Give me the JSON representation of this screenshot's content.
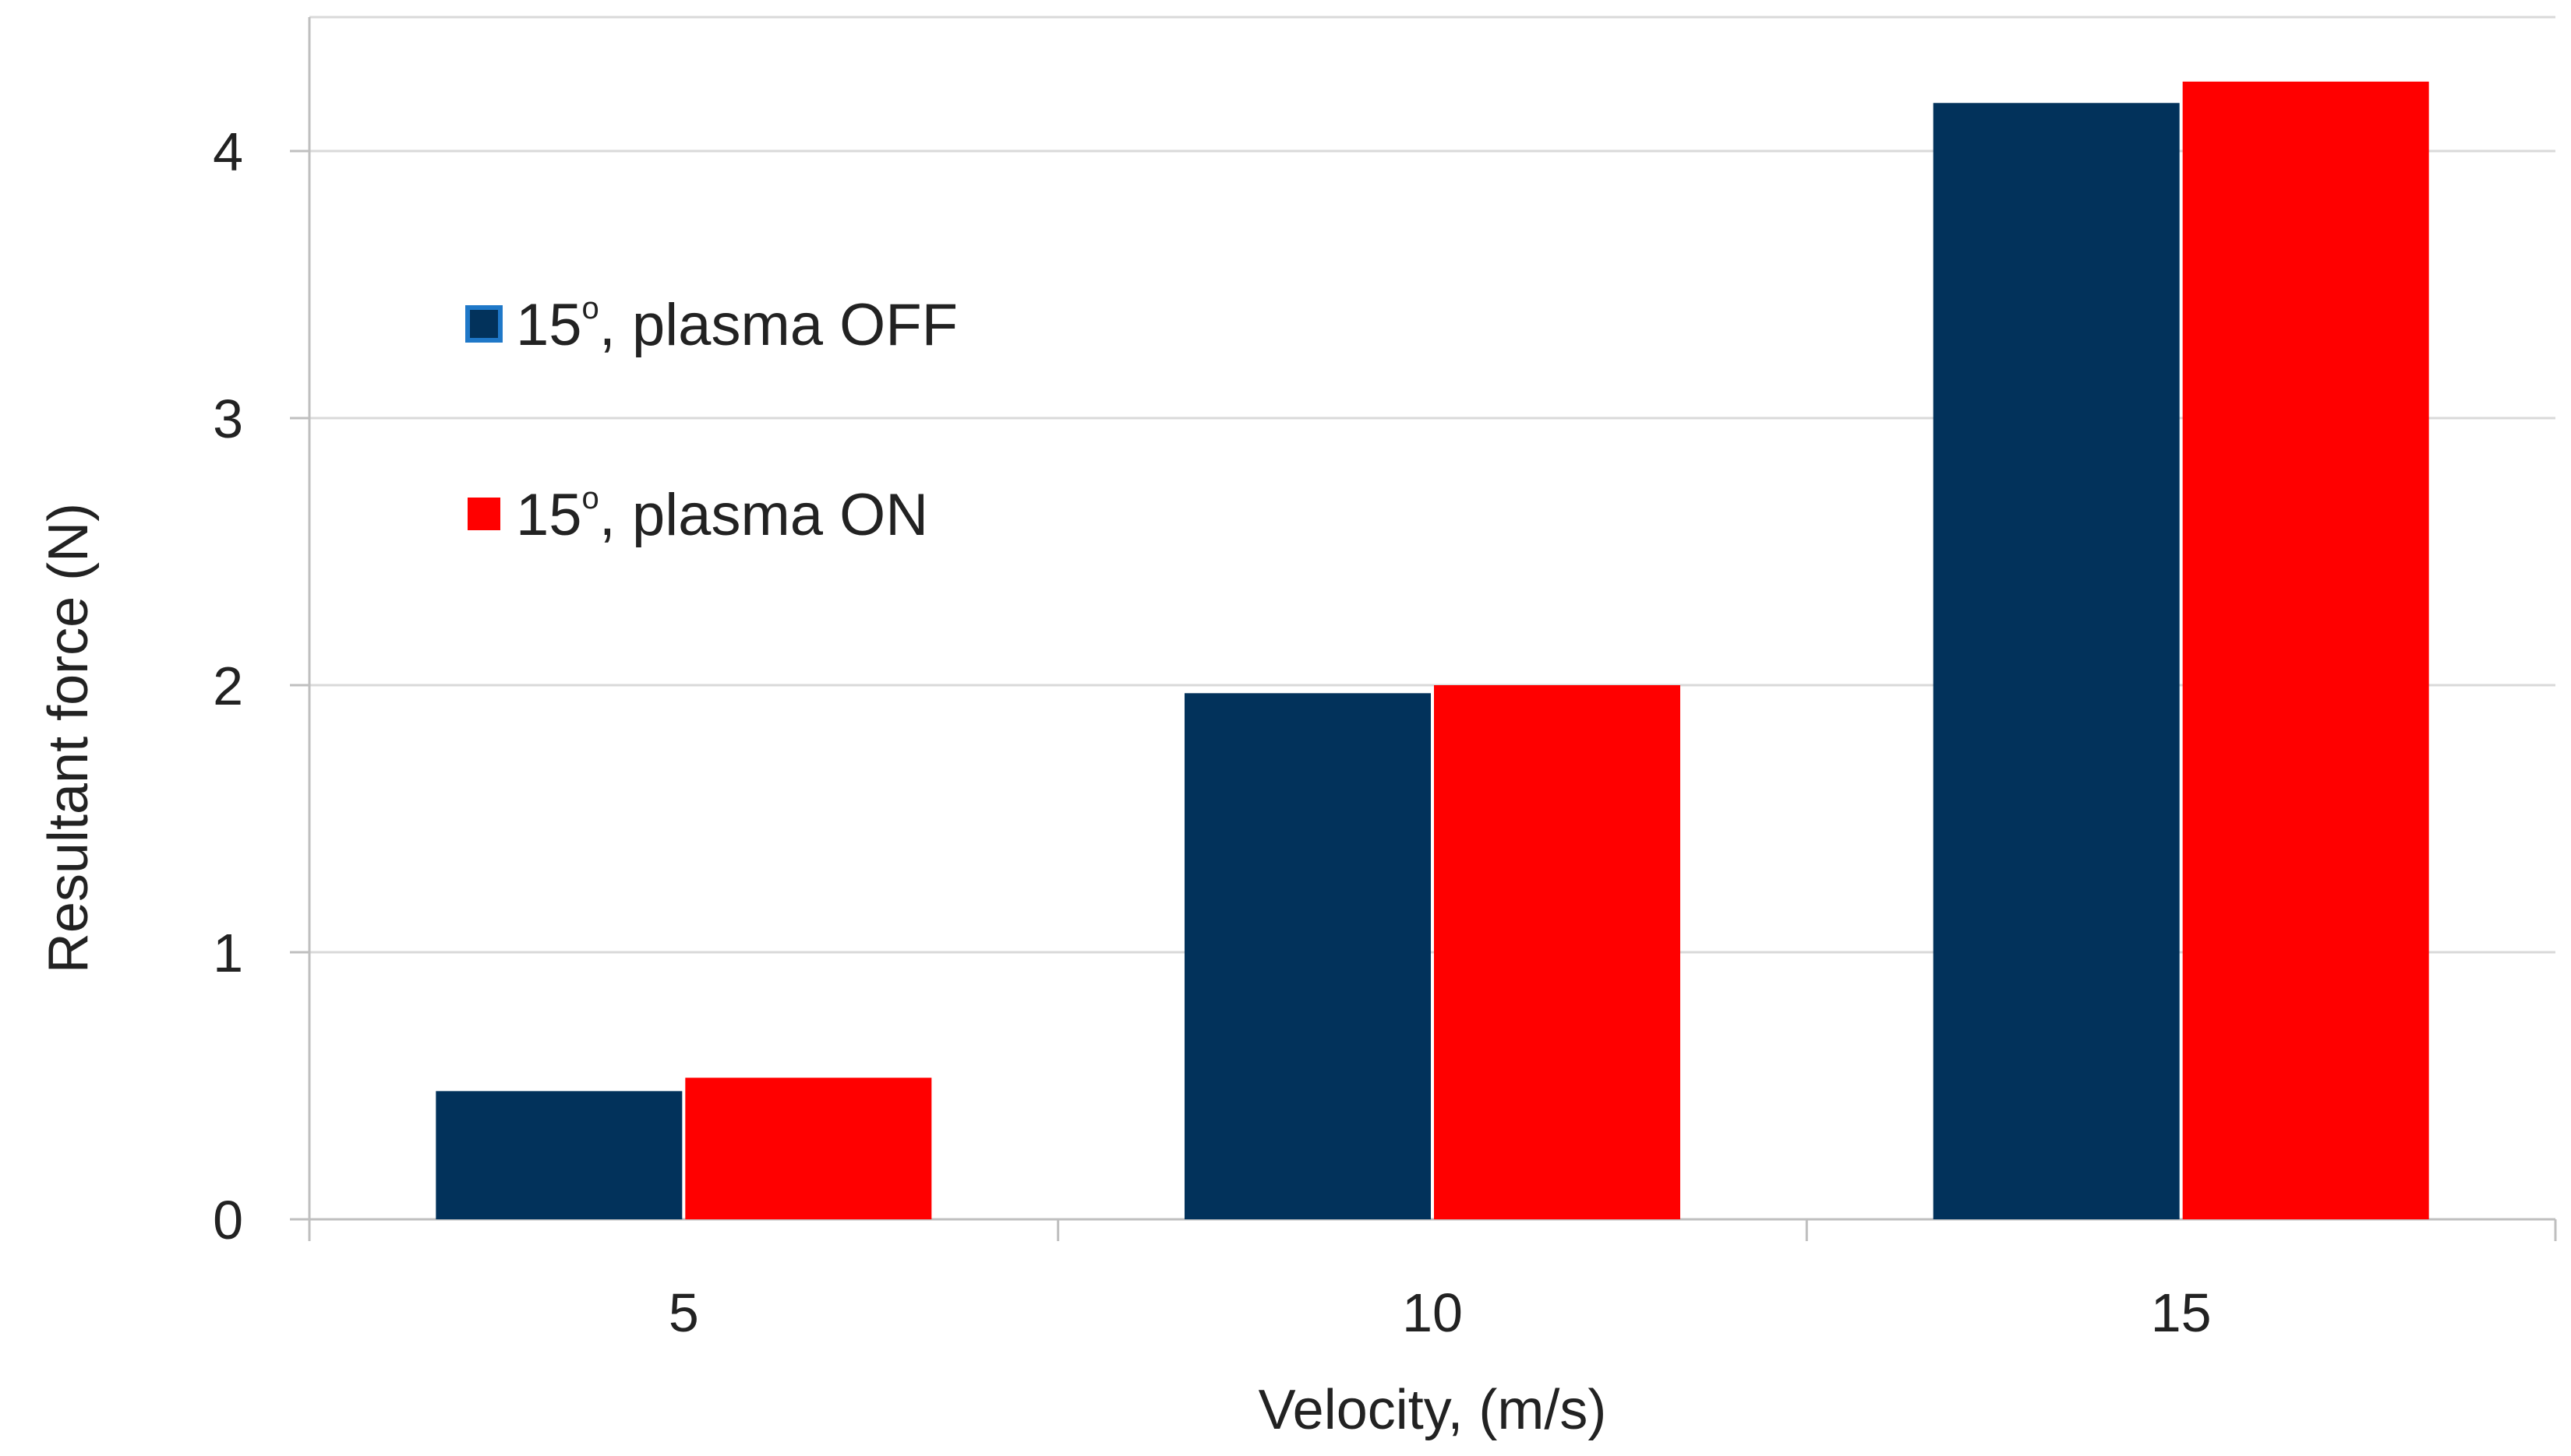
{
  "chart_data": {
    "type": "bar",
    "title": "",
    "xlabel": "Velocity,  (m/s)",
    "ylabel": "Resultant  force (N)",
    "categories": [
      "5",
      "10",
      "15"
    ],
    "series": [
      {
        "name": "15°, plasma OFF",
        "legend_base": "15",
        "legend_sup": "o",
        "legend_rest": ", plasma OFF",
        "color": "#02325B",
        "values": [
          0.48,
          1.97,
          4.18
        ]
      },
      {
        "name": "15°, plasma ON",
        "legend_base": "15",
        "legend_sup": "o",
        "legend_rest": ", plasma ON",
        "color": "#FF0000",
        "values": [
          0.53,
          2.0,
          4.26
        ]
      }
    ],
    "ylim": [
      0,
      4.5
    ],
    "yticks": [
      0,
      1,
      2,
      3,
      4
    ],
    "grid": true,
    "legend_position": "upper-left"
  }
}
